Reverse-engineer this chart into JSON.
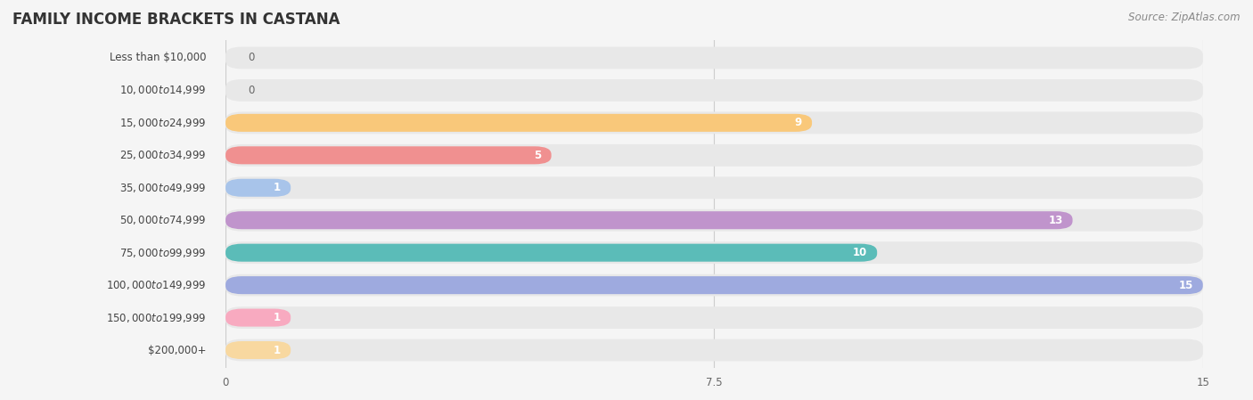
{
  "title": "FAMILY INCOME BRACKETS IN CASTANA",
  "source": "Source: ZipAtlas.com",
  "categories": [
    "Less than $10,000",
    "$10,000 to $14,999",
    "$15,000 to $24,999",
    "$25,000 to $34,999",
    "$35,000 to $49,999",
    "$50,000 to $74,999",
    "$75,000 to $99,999",
    "$100,000 to $149,999",
    "$150,000 to $199,999",
    "$200,000+"
  ],
  "values": [
    0,
    0,
    9,
    5,
    1,
    13,
    10,
    15,
    1,
    1
  ],
  "bar_colors": [
    "#aaaadc",
    "#f5a0b5",
    "#f9c87a",
    "#f09090",
    "#a8c4ea",
    "#c094cc",
    "#5bbcb8",
    "#9eaadf",
    "#f8aac0",
    "#f8d8a0"
  ],
  "background_color": "#f5f5f5",
  "bar_background_color": "#e8e8e8",
  "xlim": [
    0,
    15
  ],
  "xticks": [
    0,
    7.5,
    15
  ],
  "title_fontsize": 12,
  "label_fontsize": 8.5,
  "value_fontsize": 8.5,
  "source_fontsize": 8.5
}
